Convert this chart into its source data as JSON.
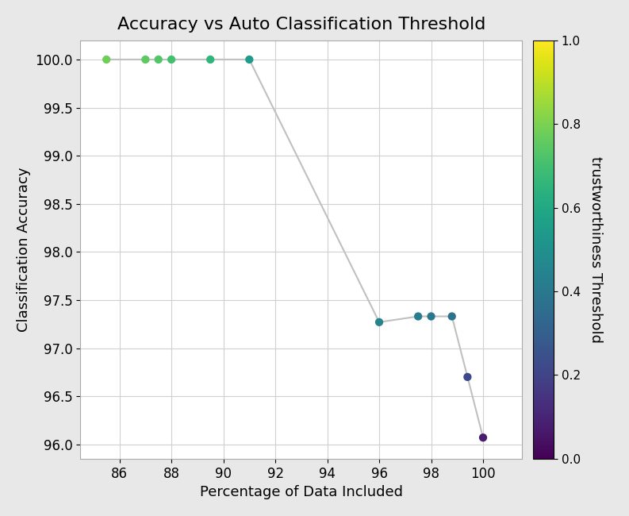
{
  "x": [
    85.5,
    87.0,
    87.5,
    88.0,
    89.5,
    91.0,
    96.0,
    97.5,
    98.0,
    98.8,
    99.4,
    100.0
  ],
  "y": [
    100.0,
    100.0,
    100.0,
    100.0,
    100.0,
    100.0,
    97.27,
    97.33,
    97.33,
    97.33,
    96.7,
    96.07
  ],
  "color_values": [
    0.78,
    0.75,
    0.73,
    0.7,
    0.65,
    0.55,
    0.45,
    0.42,
    0.4,
    0.38,
    0.22,
    0.08
  ],
  "title": "Accuracy vs Auto Classification Threshold",
  "xlabel": "Percentage of Data Included",
  "ylabel": "Classification Accuracy",
  "colorbar_label": "trustworthiness Threshold",
  "xlim": [
    84.5,
    101.5
  ],
  "ylim": [
    95.85,
    100.2
  ],
  "line_color": "#c0c0c0",
  "marker_size": 55,
  "colormap": "viridis",
  "fig_facecolor": "#e8e8e8",
  "ax_facecolor": "#ffffff",
  "title_fontsize": 16,
  "label_fontsize": 13,
  "tick_fontsize": 12
}
